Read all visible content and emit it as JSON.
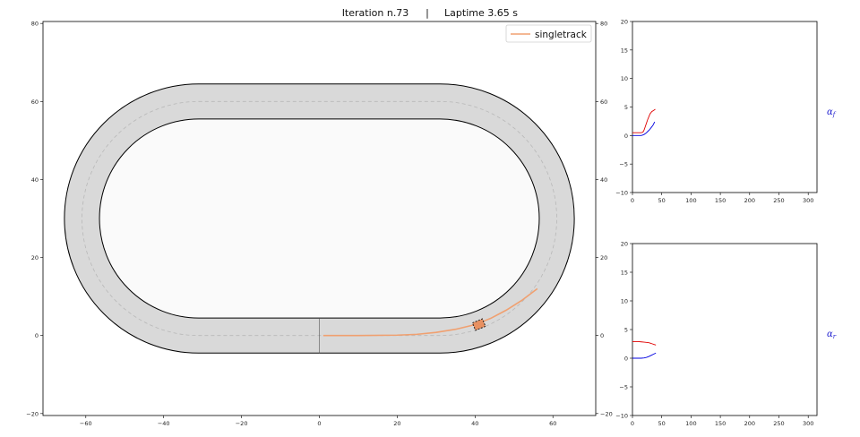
{
  "header": {
    "iteration_label": "Iteration n.73",
    "separator": "|",
    "laptime_label": "Laptime 3.65 s"
  },
  "chart_data": [
    {
      "id": "track",
      "type": "line",
      "xlim": [
        -71,
        71
      ],
      "ylim": [
        -20.5,
        80.5
      ],
      "xticks": [
        -60,
        -40,
        -20,
        0,
        20,
        40,
        60
      ],
      "yticks": [
        -20,
        0,
        20,
        40,
        60,
        80
      ],
      "grid": false,
      "legend": {
        "position": "top-right",
        "entries": [
          {
            "name": "singletrack",
            "color": "#f0a070"
          }
        ]
      },
      "track": {
        "straight_half_length": 31,
        "center_y": 30,
        "outer_radius": 34.5,
        "inner_radius": 25.5,
        "centerline_radius": 30,
        "surface_color": "#d9d9d9",
        "infield_color": "#fafafa",
        "centerline_color": "#b8b8b8"
      },
      "series": [
        {
          "name": "singletrack",
          "color": "#f0a070",
          "x": [
            1,
            10,
            20,
            25,
            30,
            35,
            40,
            44,
            48,
            52,
            56
          ],
          "y": [
            0,
            0,
            0.1,
            0.3,
            0.8,
            1.6,
            2.8,
            4.4,
            6.5,
            9.0,
            12.0
          ]
        }
      ],
      "car": {
        "x": 41,
        "y": 2.8,
        "heading_deg": 22
      }
    },
    {
      "id": "slip-front",
      "type": "line",
      "xlim": [
        0,
        315
      ],
      "ylim": [
        -10,
        20
      ],
      "xticks": [
        0,
        50,
        100,
        150,
        200,
        250,
        300
      ],
      "yticks": [
        -10,
        -5,
        0,
        5,
        10,
        15,
        20
      ],
      "ylabel_side": "α",
      "ylabel_sub": "f",
      "series": [
        {
          "color": "#e00000",
          "x": [
            0,
            5,
            10,
            15,
            18,
            20,
            22,
            24,
            26,
            28,
            30,
            33,
            36,
            39
          ],
          "y": [
            0.5,
            0.5,
            0.5,
            0.5,
            0.6,
            1.0,
            1.6,
            2.2,
            2.8,
            3.3,
            3.8,
            4.2,
            4.4,
            4.6
          ]
        },
        {
          "color": "#0000e0",
          "x": [
            0,
            5,
            10,
            15,
            18,
            20,
            23,
            26,
            29,
            32,
            35,
            38
          ],
          "y": [
            0,
            0,
            0,
            0,
            0.1,
            0.2,
            0.4,
            0.7,
            1.0,
            1.4,
            1.8,
            2.4
          ]
        }
      ]
    },
    {
      "id": "slip-rear",
      "type": "line",
      "xlim": [
        0,
        315
      ],
      "ylim": [
        -10,
        20
      ],
      "xticks": [
        0,
        50,
        100,
        150,
        200,
        250,
        300
      ],
      "yticks": [
        -10,
        -5,
        0,
        5,
        10,
        15,
        20
      ],
      "ylabel_side": "α",
      "ylabel_sub": "r",
      "series": [
        {
          "color": "#e00000",
          "x": [
            0,
            5,
            10,
            15,
            20,
            25,
            28,
            31,
            34,
            37,
            40
          ],
          "y": [
            2.9,
            2.9,
            2.9,
            2.85,
            2.8,
            2.75,
            2.7,
            2.6,
            2.5,
            2.4,
            2.3
          ]
        },
        {
          "color": "#0000e0",
          "x": [
            0,
            5,
            10,
            15,
            20,
            24,
            28,
            32,
            36,
            40
          ],
          "y": [
            0,
            0,
            0,
            0,
            0.05,
            0.15,
            0.3,
            0.5,
            0.7,
            0.9
          ]
        }
      ]
    }
  ]
}
